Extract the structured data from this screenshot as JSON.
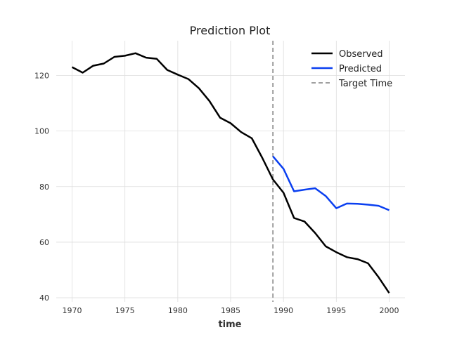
{
  "chart_data": {
    "type": "line",
    "title": "Prediction Plot",
    "xlabel": "time",
    "ylabel": "",
    "xlim": [
      1968.5,
      2001.5
    ],
    "ylim": [
      38.5,
      132.5
    ],
    "xticks": [
      1970,
      1975,
      1980,
      1985,
      1990,
      1995,
      2000
    ],
    "yticks": [
      40,
      60,
      80,
      100,
      120
    ],
    "grid": true,
    "legend_position": "top-right",
    "target_time": 1989,
    "series": [
      {
        "name": "Observed",
        "color": "#000000",
        "x": [
          1970,
          1971,
          1972,
          1973,
          1974,
          1975,
          1976,
          1977,
          1978,
          1979,
          1980,
          1981,
          1982,
          1983,
          1984,
          1985,
          1986,
          1987,
          1988,
          1989,
          1990,
          1991,
          1992,
          1993,
          1994,
          1995,
          1996,
          1997,
          1998,
          1999,
          2000
        ],
        "values": [
          123.0,
          121.0,
          123.5,
          124.3,
          126.7,
          127.1,
          128.0,
          126.4,
          126.0,
          122.0,
          120.3,
          118.7,
          115.4,
          110.8,
          104.8,
          102.8,
          99.6,
          97.4,
          90.3,
          82.6,
          77.8,
          68.7,
          67.4,
          63.3,
          58.5,
          56.4,
          54.6,
          53.9,
          52.4,
          47.4,
          41.7
        ]
      },
      {
        "name": "Predicted",
        "color": "#0a3ff0",
        "x": [
          1989,
          1990,
          1991,
          1992,
          1993,
          1994,
          1995,
          1996,
          1997,
          1998,
          1999,
          2000
        ],
        "values": [
          90.9,
          86.4,
          78.3,
          78.9,
          79.4,
          76.6,
          72.2,
          73.9,
          73.8,
          73.5,
          73.1,
          71.5
        ]
      },
      {
        "name": "Target Time",
        "color": "#808080",
        "style": "dashed"
      }
    ]
  }
}
